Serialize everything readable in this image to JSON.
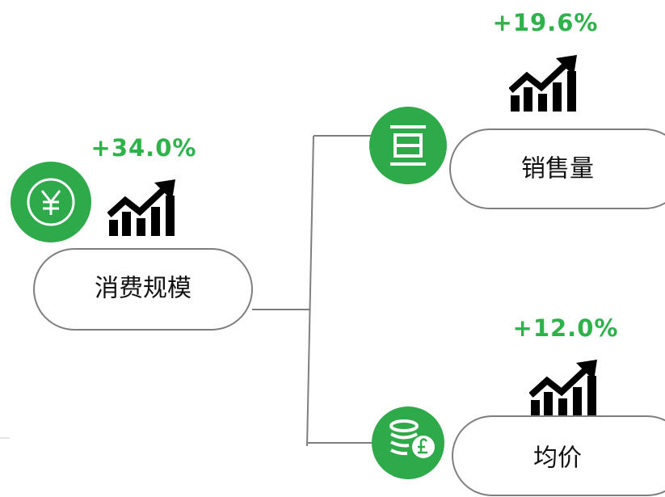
{
  "nodes": [
    {
      "label": "消费规模",
      "change": "+34.0%"
    },
    {
      "label": "销售量",
      "change": "+19.6%"
    },
    {
      "label": "均价",
      "change": "+12.0%"
    }
  ]
}
